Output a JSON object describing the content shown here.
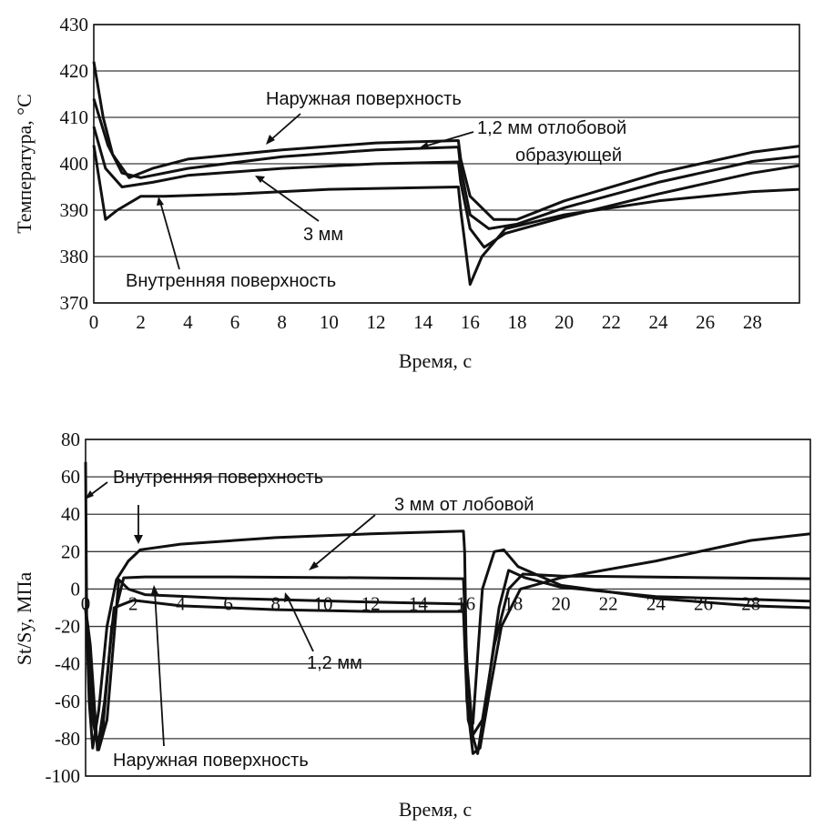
{
  "chart_data": [
    {
      "type": "line",
      "xlabel": "Время, с",
      "ylabel": "Температура, °С",
      "xlim": [
        0,
        30
      ],
      "ylim": [
        370,
        430
      ],
      "xticks": [
        0,
        2,
        4,
        6,
        8,
        10,
        12,
        14,
        16,
        18,
        20,
        22,
        24,
        26,
        28
      ],
      "yticks": [
        370,
        380,
        390,
        400,
        410,
        420,
        430
      ],
      "grid": "horizontal",
      "annotations": [
        "Наружная поверхность",
        "1,2 мм отлобовой",
        "образующей",
        "3 мм",
        "Внутренняя поверхность"
      ],
      "series": [
        {
          "values": [
            [
              0,
              422
            ],
            [
              0.4,
              410
            ],
            [
              0.8,
              402
            ],
            [
              1.5,
              397
            ],
            [
              2.5,
              399
            ],
            [
              4,
              401
            ],
            [
              8,
              403
            ],
            [
              12,
              404.5
            ],
            [
              15.5,
              405
            ],
            [
              15.6,
              401
            ],
            [
              16,
              393
            ],
            [
              17,
              388
            ],
            [
              18,
              388
            ],
            [
              20,
              392
            ],
            [
              24,
              398
            ],
            [
              28,
              402.5
            ],
            [
              30,
              403.8
            ]
          ]
        },
        {
          "values": [
            [
              0,
              414
            ],
            [
              0.6,
              404
            ],
            [
              1.2,
              398
            ],
            [
              2,
              397
            ],
            [
              4,
              399
            ],
            [
              8,
              401.5
            ],
            [
              12,
              403
            ],
            [
              15.5,
              403.6
            ],
            [
              15.6,
              399
            ],
            [
              16,
              389
            ],
            [
              16.8,
              386
            ],
            [
              18,
              387
            ],
            [
              20,
              390.5
            ],
            [
              24,
              396
            ],
            [
              28,
              400.5
            ],
            [
              30,
              401.6
            ]
          ]
        },
        {
          "values": [
            [
              0,
              408
            ],
            [
              0.5,
              399
            ],
            [
              1.2,
              395
            ],
            [
              2.5,
              396
            ],
            [
              4,
              397.5
            ],
            [
              8,
              399
            ],
            [
              12,
              400
            ],
            [
              15.5,
              400.4
            ],
            [
              15.6,
              396
            ],
            [
              16,
              386
            ],
            [
              16.6,
              382
            ],
            [
              17.5,
              385
            ],
            [
              20,
              388.5
            ],
            [
              24,
              393.5
            ],
            [
              28,
              398
            ],
            [
              30,
              399.6
            ]
          ]
        },
        {
          "values": [
            [
              0,
              404
            ],
            [
              0.5,
              388
            ],
            [
              1,
              390
            ],
            [
              2,
              393
            ],
            [
              3,
              393
            ],
            [
              6,
              393.5
            ],
            [
              10,
              394.5
            ],
            [
              15.5,
              395
            ],
            [
              15.6,
              390
            ],
            [
              16,
              374
            ],
            [
              16.5,
              380
            ],
            [
              17.5,
              386
            ],
            [
              20,
              389
            ],
            [
              24,
              392
            ],
            [
              28,
              394
            ],
            [
              30,
              394.5
            ]
          ]
        }
      ]
    },
    {
      "type": "line",
      "xlabel": "Время, с",
      "ylabel": "St/Sy,  МПа",
      "xlim": [
        0,
        30.5
      ],
      "ylim": [
        -100,
        80
      ],
      "xticks": [
        0,
        2,
        4,
        6,
        8,
        10,
        12,
        14,
        16,
        18,
        20,
        22,
        24,
        26,
        28
      ],
      "yticks": [
        -100,
        -80,
        -60,
        -40,
        -20,
        0,
        20,
        40,
        60,
        80
      ],
      "grid": "horizontal",
      "annotations": [
        "Внутренняя поверхность",
        "3 мм от лобовой",
        "1,2 мм",
        "Наружная поверхность"
      ],
      "series": [
        {
          "values": [
            [
              0,
              68
            ],
            [
              0.05,
              -20
            ],
            [
              0.15,
              -60
            ],
            [
              0.3,
              -85
            ],
            [
              0.55,
              -65
            ],
            [
              0.9,
              -20
            ],
            [
              1.3,
              5
            ],
            [
              1.8,
              15
            ],
            [
              2.3,
              21
            ],
            [
              4,
              24
            ],
            [
              8,
              27.5
            ],
            [
              12,
              29.5
            ],
            [
              15.9,
              31
            ],
            [
              15.95,
              20
            ],
            [
              16.05,
              -60
            ],
            [
              16.3,
              -88
            ],
            [
              16.6,
              -85
            ],
            [
              17,
              -55
            ],
            [
              17.5,
              -20
            ],
            [
              18.3,
              0
            ],
            [
              20,
              6
            ],
            [
              24,
              15
            ],
            [
              28,
              26
            ],
            [
              30.5,
              29.5
            ]
          ]
        },
        {
          "values": [
            [
              0,
              -10
            ],
            [
              0.2,
              -50
            ],
            [
              0.45,
              -80
            ],
            [
              0.7,
              -78
            ],
            [
              1.1,
              -20
            ],
            [
              1.6,
              6
            ],
            [
              2.5,
              6.5
            ],
            [
              6,
              6.5
            ],
            [
              12,
              6
            ],
            [
              15.9,
              5.5
            ],
            [
              16.05,
              -40
            ],
            [
              16.3,
              -78
            ],
            [
              16.7,
              -70
            ],
            [
              17.2,
              -30
            ],
            [
              17.8,
              0
            ],
            [
              18.4,
              8
            ],
            [
              20,
              7
            ],
            [
              30.5,
              5.5
            ]
          ]
        },
        {
          "values": [
            [
              0,
              -10
            ],
            [
              0.3,
              -70
            ],
            [
              0.55,
              -86
            ],
            [
              0.9,
              -70
            ],
            [
              1.4,
              5
            ],
            [
              1.8,
              0
            ],
            [
              2.5,
              -3
            ],
            [
              6,
              -5
            ],
            [
              12,
              -7
            ],
            [
              15.9,
              -8
            ],
            [
              16.1,
              -70
            ],
            [
              16.5,
              -88
            ],
            [
              16.9,
              -55
            ],
            [
              17.4,
              -10
            ],
            [
              17.8,
              10
            ],
            [
              18.5,
              6
            ],
            [
              20,
              1
            ],
            [
              24,
              -4
            ],
            [
              30.5,
              -6.5
            ]
          ]
        },
        {
          "values": [
            [
              0,
              -10
            ],
            [
              0.2,
              -30
            ],
            [
              0.5,
              -86
            ],
            [
              0.8,
              -60
            ],
            [
              1.2,
              -10
            ],
            [
              2,
              -6
            ],
            [
              4,
              -9
            ],
            [
              8,
              -11
            ],
            [
              12,
              -12
            ],
            [
              15.9,
              -12
            ],
            [
              16.05,
              -60
            ],
            [
              16.3,
              -72
            ],
            [
              16.7,
              0
            ],
            [
              17.2,
              20
            ],
            [
              17.6,
              21
            ],
            [
              18.2,
              12
            ],
            [
              20,
              2
            ],
            [
              24,
              -5
            ],
            [
              28,
              -9
            ],
            [
              30.5,
              -10
            ]
          ]
        }
      ]
    }
  ]
}
